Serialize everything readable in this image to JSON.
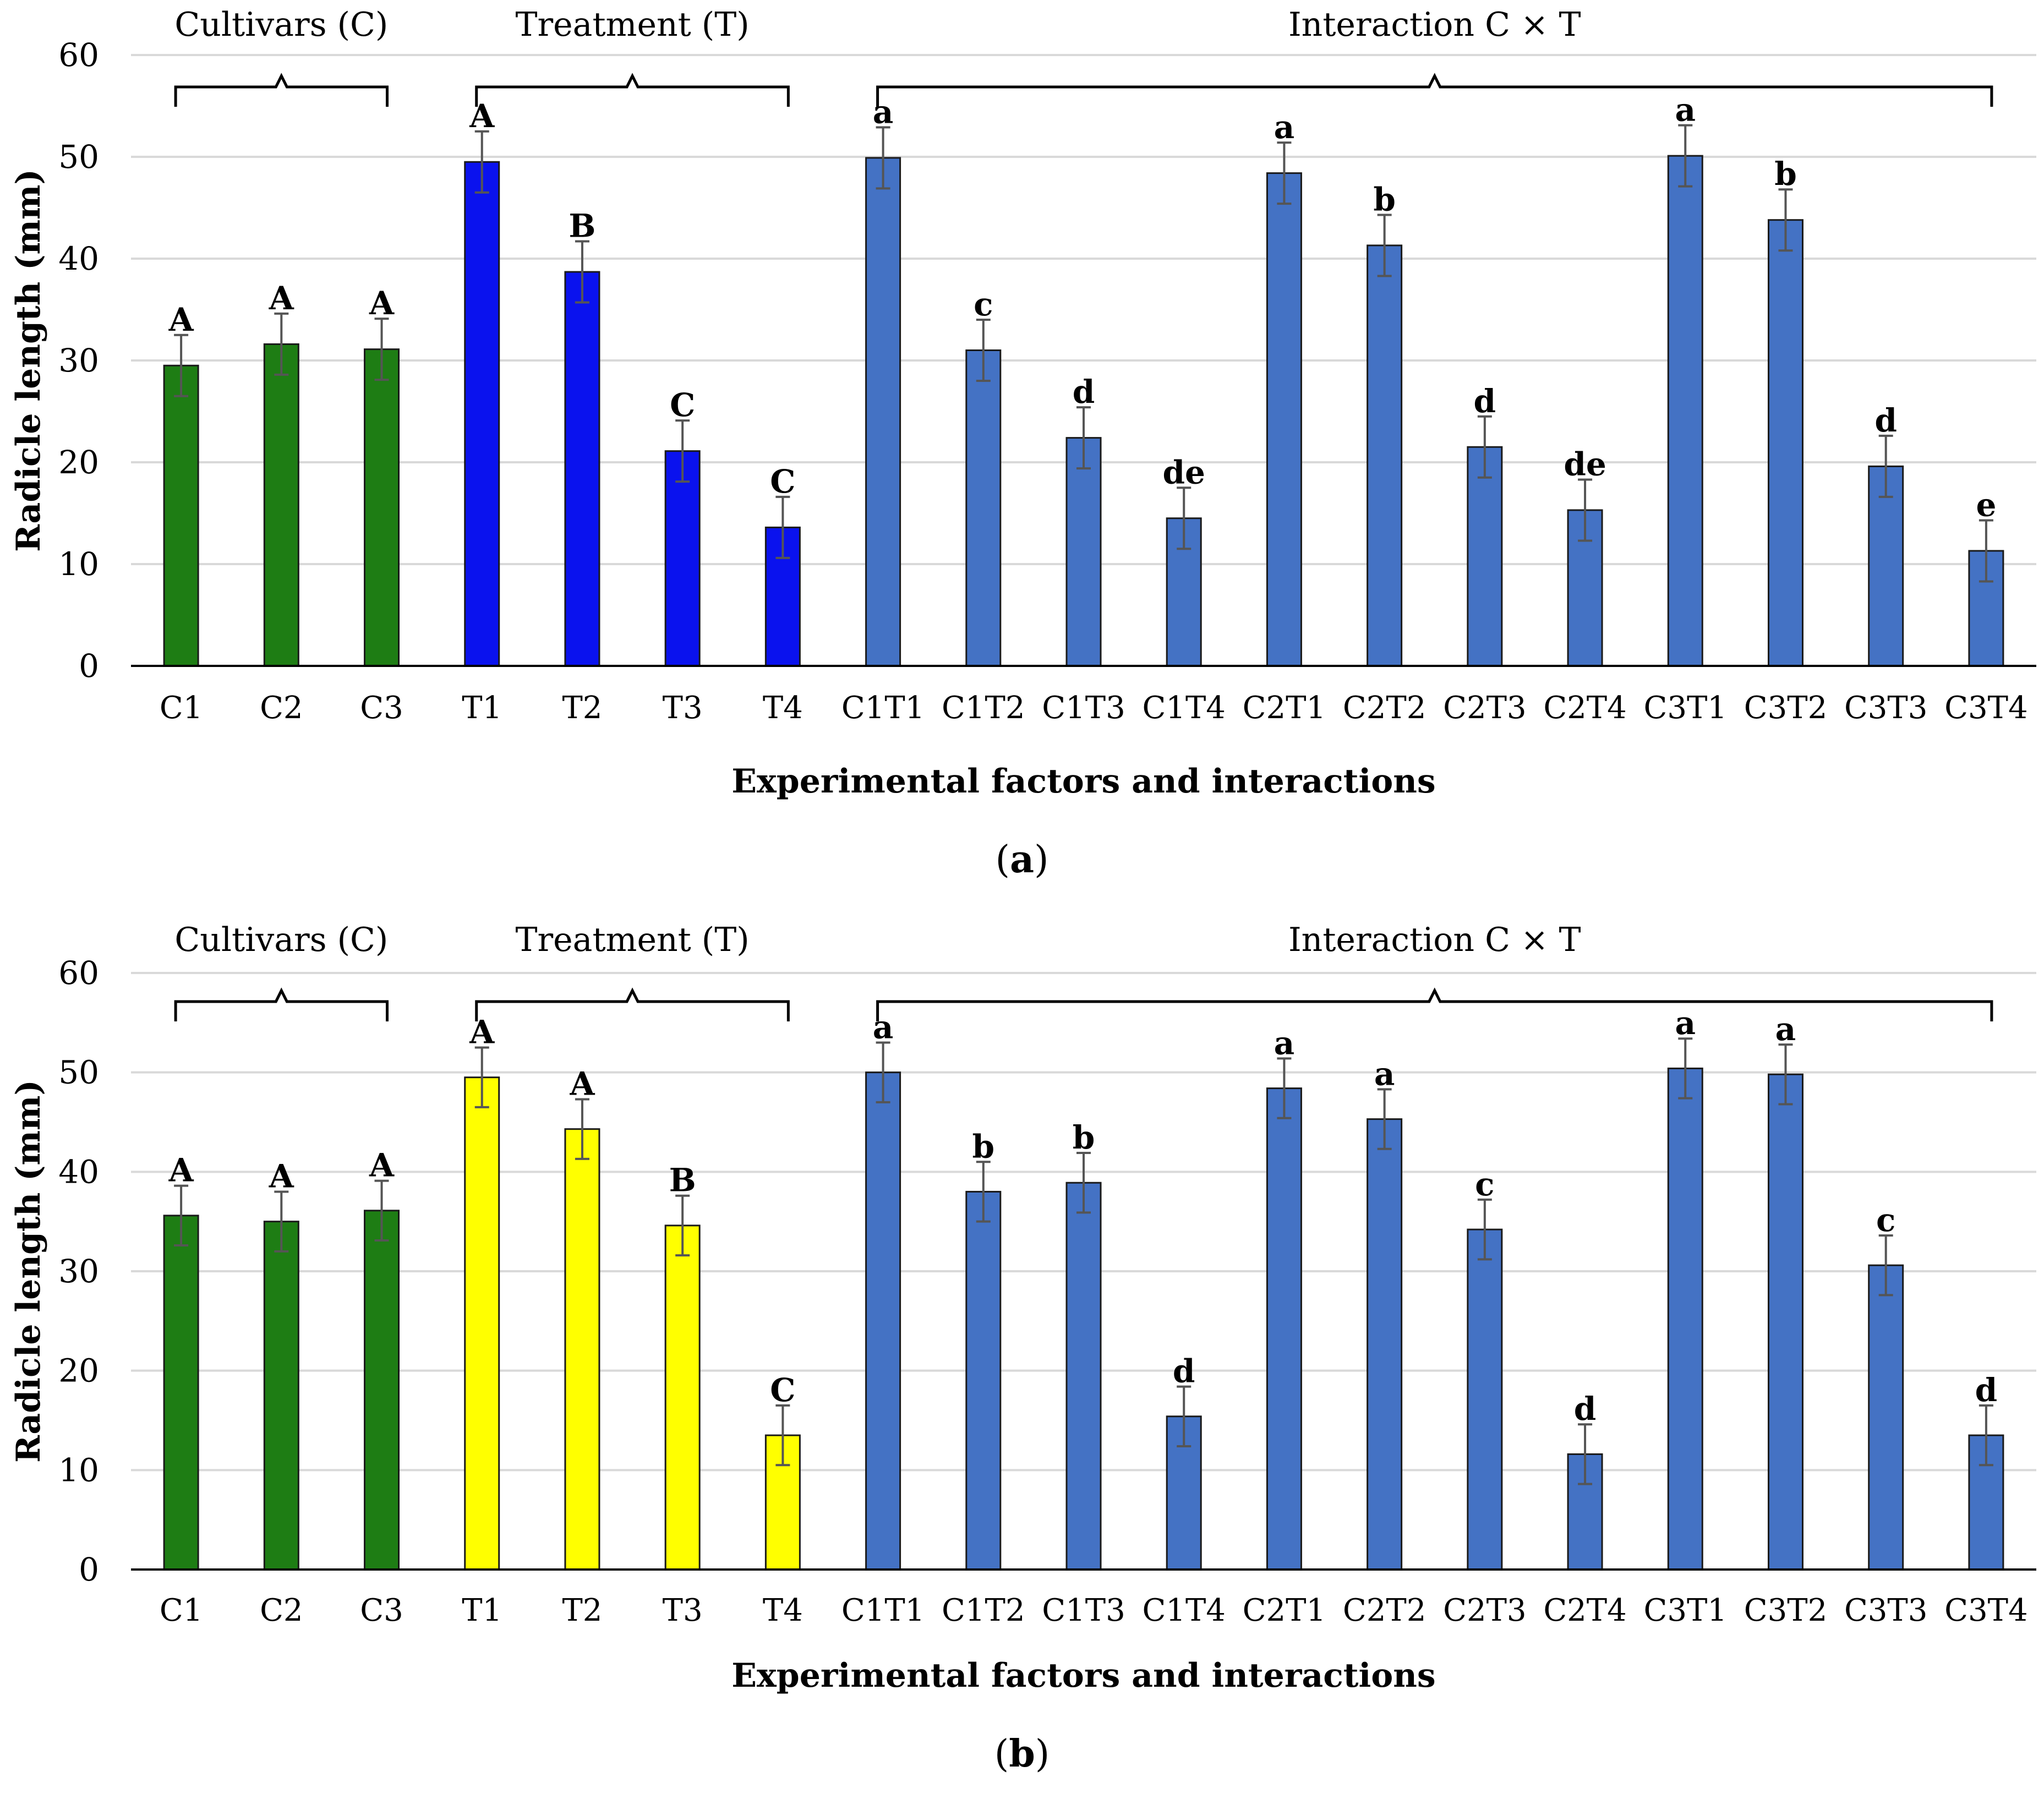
{
  "chart_data": [
    {
      "panel_label": "a",
      "type": "bar",
      "xlabel": "Experimental factors and interactions",
      "ylabel": "Radicle length (mm)",
      "ylim": [
        0,
        60
      ],
      "yticks": [
        0,
        10,
        20,
        30,
        40,
        50,
        60
      ],
      "grid": true,
      "groups": [
        {
          "label": "Cultivars (C)",
          "categories": [
            "C1",
            "C2",
            "C3"
          ]
        },
        {
          "label": "Treatment (T)",
          "categories": [
            "T1",
            "T2",
            "T3",
            "T4"
          ]
        },
        {
          "label": "Interaction C × T",
          "categories": [
            "C1T1",
            "C1T2",
            "C1T3",
            "C1T4",
            "C2T1",
            "C2T2",
            "C2T3",
            "C2T4",
            "C3T1",
            "C3T2",
            "C3T3",
            "C3T4"
          ]
        }
      ],
      "categories": [
        "C1",
        "C2",
        "C3",
        "T1",
        "T2",
        "T3",
        "T4",
        "C1T1",
        "C1T2",
        "C1T3",
        "C1T4",
        "C2T1",
        "C2T2",
        "C2T3",
        "C2T4",
        "C3T1",
        "C3T2",
        "C3T3",
        "C3T4"
      ],
      "values": [
        29.5,
        31.6,
        31.1,
        49.5,
        38.7,
        21.1,
        13.6,
        49.9,
        31.0,
        22.4,
        14.5,
        48.4,
        41.3,
        21.5,
        15.3,
        50.1,
        43.8,
        19.6,
        11.3
      ],
      "errors": [
        3.0,
        3.0,
        3.0,
        3.0,
        3.0,
        3.0,
        3.0,
        3.0,
        3.0,
        3.0,
        3.0,
        3.0,
        3.0,
        3.0,
        3.0,
        3.0,
        3.0,
        3.0,
        3.0
      ],
      "letters": [
        "A",
        "A",
        "A",
        "A",
        "B",
        "C",
        "C",
        "a",
        "c",
        "d",
        "de",
        "a",
        "b",
        "d",
        "de",
        "a",
        "b",
        "d",
        "e"
      ],
      "colors": [
        "#1e7d14",
        "#1e7d14",
        "#1e7d14",
        "#0a12ee",
        "#0a12ee",
        "#0a12ee",
        "#0a12ee",
        "#4472c4",
        "#4472c4",
        "#4472c4",
        "#4472c4",
        "#4472c4",
        "#4472c4",
        "#4472c4",
        "#4472c4",
        "#4472c4",
        "#4472c4",
        "#4472c4",
        "#4472c4"
      ]
    },
    {
      "panel_label": "b",
      "type": "bar",
      "xlabel": "Experimental factors and interactions",
      "ylabel": "Radicle length (mm)",
      "ylim": [
        0,
        60
      ],
      "yticks": [
        0,
        10,
        20,
        30,
        40,
        50,
        60
      ],
      "grid": true,
      "groups": [
        {
          "label": "Cultivars (C)",
          "categories": [
            "C1",
            "C2",
            "C3"
          ]
        },
        {
          "label": "Treatment (T)",
          "categories": [
            "T1",
            "T2",
            "T3",
            "T4"
          ]
        },
        {
          "label": "Interaction C × T",
          "categories": [
            "C1T1",
            "C1T2",
            "C1T3",
            "C1T4",
            "C2T1",
            "C2T2",
            "C2T3",
            "C2T4",
            "C3T1",
            "C3T2",
            "C3T3",
            "C3T4"
          ]
        }
      ],
      "categories": [
        "C1",
        "C2",
        "C3",
        "T1",
        "T2",
        "T3",
        "T4",
        "C1T1",
        "C1T2",
        "C1T3",
        "C1T4",
        "C2T1",
        "C2T2",
        "C2T3",
        "C2T4",
        "C3T1",
        "C3T2",
        "C3T3",
        "C3T4"
      ],
      "values": [
        35.6,
        35.0,
        36.1,
        49.5,
        44.3,
        34.6,
        13.5,
        50.0,
        38.0,
        38.9,
        15.4,
        48.4,
        45.3,
        34.2,
        11.6,
        50.4,
        49.8,
        30.6,
        13.5
      ],
      "errors": [
        3.0,
        3.0,
        3.0,
        3.0,
        3.0,
        3.0,
        3.0,
        3.0,
        3.0,
        3.0,
        3.0,
        3.0,
        3.0,
        3.0,
        3.0,
        3.0,
        3.0,
        3.0,
        3.0
      ],
      "letters": [
        "A",
        "A",
        "A",
        "A",
        "A",
        "B",
        "C",
        "a",
        "b",
        "b",
        "d",
        "a",
        "a",
        "c",
        "d",
        "a",
        "a",
        "c",
        "d"
      ],
      "colors": [
        "#1e7d14",
        "#1e7d14",
        "#1e7d14",
        "#ffff00",
        "#ffff00",
        "#ffff00",
        "#ffff00",
        "#4472c4",
        "#4472c4",
        "#4472c4",
        "#4472c4",
        "#4472c4",
        "#4472c4",
        "#4472c4",
        "#4472c4",
        "#4472c4",
        "#4472c4",
        "#4472c4",
        "#4472c4"
      ]
    }
  ]
}
